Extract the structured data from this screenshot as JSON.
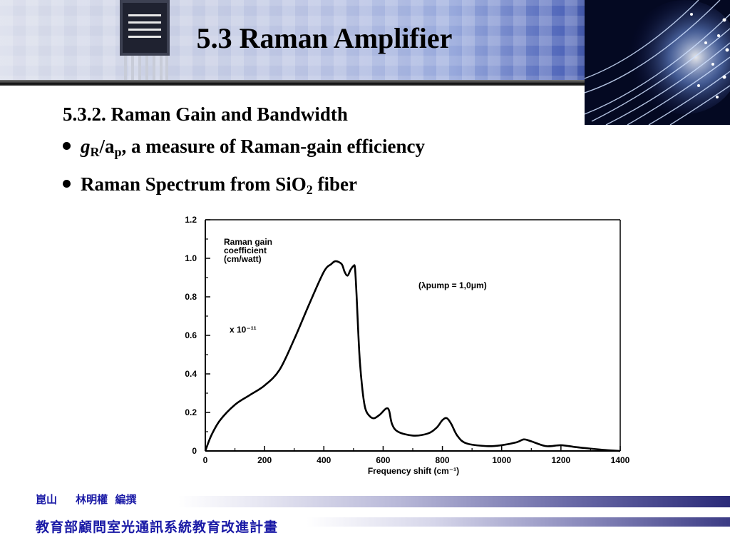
{
  "slide": {
    "title": "5.3  Raman Amplifier",
    "section": "5.3.2. Raman Gain and Bandwidth",
    "bullet1": {
      "symbol": "g",
      "sub1": "R",
      "slash": "/a",
      "sub2": "p",
      "rest": ", a measure of Raman-gain efficiency"
    },
    "bullet2": {
      "text": "Raman Spectrum from SiO",
      "sub": "2",
      "rest": " fiber"
    }
  },
  "chart_data": {
    "type": "line",
    "xlabel": "Frequency shift (cm⁻¹)",
    "xlim": [
      0,
      1400
    ],
    "ylim": [
      0,
      1.2
    ],
    "xticks": [
      "0",
      "200",
      "400",
      "600",
      "800",
      "1000",
      "1200",
      "1400"
    ],
    "yticks": [
      "0",
      "0.2",
      "0.4",
      "0.6",
      "0.8",
      "1.0",
      "1.2"
    ],
    "ylabel_lines": [
      "Raman gain",
      "coefficient",
      "(cm/watt)"
    ],
    "scale_note": "x 10⁻¹¹",
    "pump_note": "(λpump = 1,0μm)",
    "grid": false,
    "series": [
      {
        "x": [
          0,
          20,
          50,
          100,
          150,
          200,
          250,
          300,
          350,
          400,
          425,
          440,
          460,
          470,
          480,
          490,
          500,
          505,
          510,
          520,
          530,
          540,
          555,
          570,
          590,
          610,
          620,
          630,
          650,
          700,
          750,
          780,
          800,
          815,
          830,
          850,
          880,
          950,
          1000,
          1050,
          1075,
          1100,
          1150,
          1200,
          1250,
          1300,
          1350,
          1400
        ],
        "y": [
          0,
          0.08,
          0.16,
          0.24,
          0.29,
          0.34,
          0.42,
          0.58,
          0.76,
          0.93,
          0.97,
          0.985,
          0.97,
          0.93,
          0.91,
          0.94,
          0.96,
          0.95,
          0.82,
          0.5,
          0.32,
          0.22,
          0.18,
          0.17,
          0.19,
          0.22,
          0.21,
          0.14,
          0.1,
          0.08,
          0.09,
          0.12,
          0.16,
          0.17,
          0.14,
          0.08,
          0.04,
          0.025,
          0.03,
          0.045,
          0.06,
          0.05,
          0.025,
          0.03,
          0.02,
          0.012,
          0.005,
          0
        ]
      }
    ]
  },
  "footer": {
    "author": "崑山     林明權  編撰",
    "org": "教育部顧問室光通訊系統教育改進計畫"
  },
  "colors": {
    "footer_text": "#1a1aa6",
    "banner_dark": "#050b2c"
  }
}
